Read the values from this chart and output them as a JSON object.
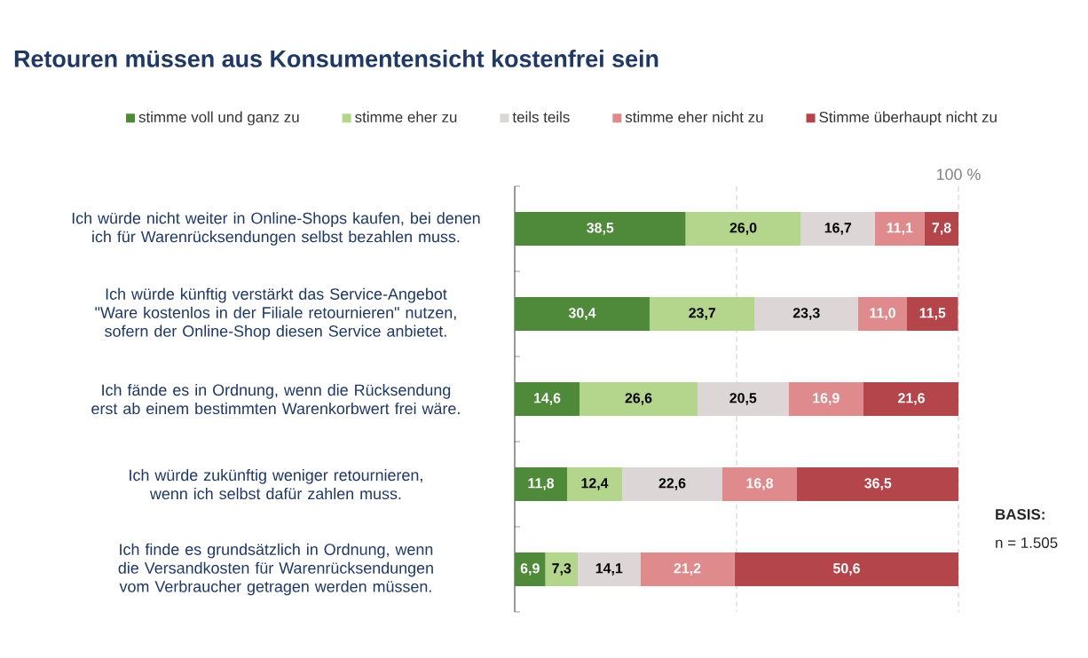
{
  "chart_data": {
    "type": "bar",
    "orientation": "horizontal",
    "stacked": true,
    "title": "Retouren müssen aus Konsumentensicht kostenfrei sein",
    "categories": [
      "Ich würde nicht weiter in Online-Shops kaufen, bei denen ich für Warenrücksendungen selbst bezahlen muss.",
      "Ich würde künftig verstärkt das Service-Angebot \"Ware kostenlos in der Filiale retournieren\" nutzen, sofern der Online-Shop diesen Service anbietet.",
      "Ich fände es in Ordnung, wenn die Rücksendung erst ab einem bestimmten Warenkorbwert frei wäre.",
      "Ich würde zukünftig weniger retournieren, wenn ich selbst dafür zahlen muss.",
      "Ich finde es grundsätzlich in Ordnung, wenn die Versandkosten für Warenrücksendungen vom Verbraucher getragen werden müssen."
    ],
    "series": [
      {
        "name": "stimme voll und ganz zu",
        "color": "#4e8a3a",
        "values": [
          38.5,
          30.4,
          14.6,
          11.8,
          6.9
        ],
        "value_labels": [
          "38,5",
          "30,4",
          "14,6",
          "11,8",
          "6,9"
        ]
      },
      {
        "name": "stimme eher zu",
        "color": "#b3d68c",
        "values": [
          26.0,
          23.7,
          26.6,
          12.4,
          7.3
        ],
        "value_labels": [
          "26,0",
          "23,7",
          "26,6",
          "12,4",
          "7,3"
        ]
      },
      {
        "name": "teils teils",
        "color": "#dcd6d6",
        "values": [
          16.7,
          23.3,
          20.5,
          22.6,
          14.1
        ],
        "value_labels": [
          "16,7",
          "23,3",
          "20,5",
          "22,6",
          "14,1"
        ]
      },
      {
        "name": "stimme eher nicht zu",
        "color": "#df8a8c",
        "values": [
          11.1,
          11.0,
          16.9,
          16.8,
          21.2
        ],
        "value_labels": [
          "11,1",
          "11,0",
          "16,9",
          "16,8",
          "21,2"
        ]
      },
      {
        "name": "Stimme überhaupt nicht zu",
        "color": "#b4464b",
        "values": [
          7.8,
          11.5,
          21.6,
          36.5,
          50.6
        ],
        "value_labels": [
          "7,8",
          "11,5",
          "21,6",
          "36,5",
          "50,6"
        ]
      }
    ],
    "xlim": [
      0,
      100
    ],
    "xticks": [
      {
        "value": 50,
        "label": null
      },
      {
        "value": 100,
        "label": "100 %"
      }
    ],
    "grid": "x",
    "legend": "top",
    "annotations": [
      "BASIS:",
      "n = 1.505"
    ]
  }
}
